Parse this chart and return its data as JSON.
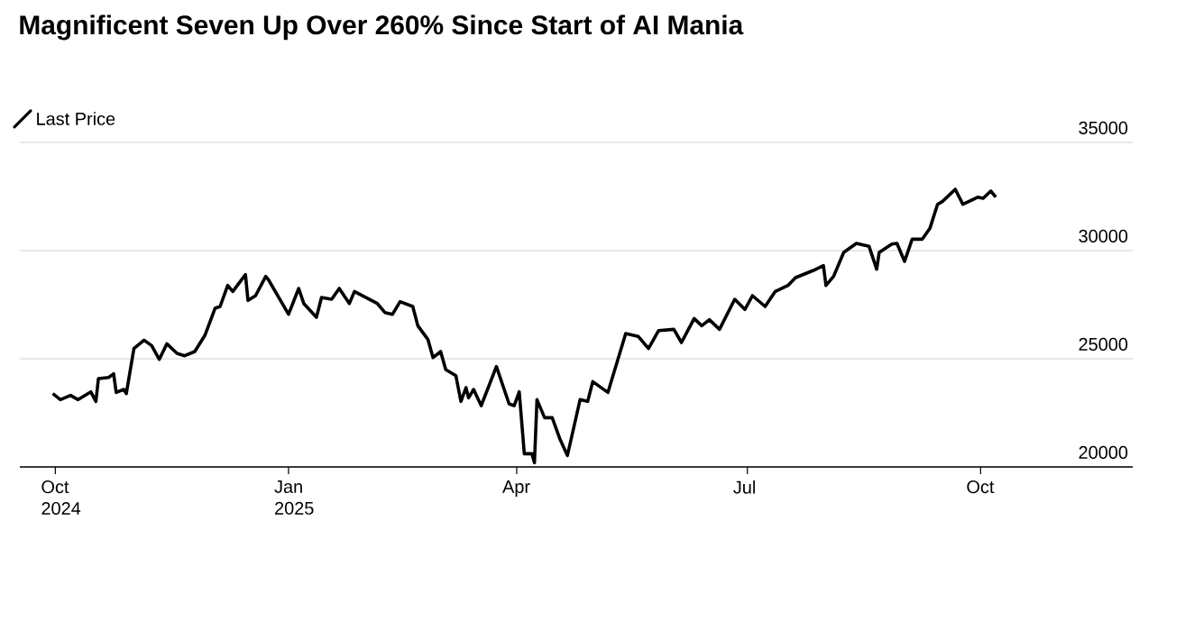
{
  "chart_data": {
    "type": "line",
    "title": "Magnificent Seven Up Over 260% Since Start of AI Mania",
    "x": [
      "2024-09-30",
      "2024-10-03",
      "2024-10-07",
      "2024-10-10",
      "2024-10-15",
      "2024-10-17",
      "2024-10-18",
      "2024-10-22",
      "2024-10-24",
      "2024-10-25",
      "2024-10-28",
      "2024-10-29",
      "2024-11-01",
      "2024-11-05",
      "2024-11-08",
      "2024-11-11",
      "2024-11-14",
      "2024-11-18",
      "2024-11-21",
      "2024-11-25",
      "2024-11-29",
      "2024-12-03",
      "2024-12-05",
      "2024-12-08",
      "2024-12-10",
      "2024-12-15",
      "2024-12-16",
      "2024-12-19",
      "2024-12-23",
      "2024-12-24",
      "2025-01-01",
      "2025-01-05",
      "2025-01-07",
      "2025-01-12",
      "2025-01-14",
      "2025-01-18",
      "2025-01-21",
      "2025-01-25",
      "2025-01-27",
      "2025-02-05",
      "2025-02-08",
      "2025-02-11",
      "2025-02-14",
      "2025-02-19",
      "2025-02-21",
      "2025-02-25",
      "2025-02-27",
      "2025-03-02",
      "2025-03-04",
      "2025-03-08",
      "2025-03-10",
      "2025-03-12",
      "2025-03-13",
      "2025-03-15",
      "2025-03-18",
      "2025-03-24",
      "2025-03-29",
      "2025-03-31",
      "2025-04-02",
      "2025-04-04",
      "2025-04-07",
      "2025-04-08",
      "2025-04-09",
      "2025-04-12",
      "2025-04-15",
      "2025-04-18",
      "2025-04-21",
      "2025-04-26",
      "2025-04-29",
      "2025-05-01",
      "2025-05-07",
      "2025-05-14",
      "2025-05-19",
      "2025-05-23",
      "2025-05-27",
      "2025-06-02",
      "2025-06-05",
      "2025-06-10",
      "2025-06-13",
      "2025-06-16",
      "2025-06-20",
      "2025-06-26",
      "2025-06-30",
      "2025-07-03",
      "2025-07-08",
      "2025-07-12",
      "2025-07-17",
      "2025-07-20",
      "2025-07-27",
      "2025-07-31",
      "2025-08-01",
      "2025-08-04",
      "2025-08-08",
      "2025-08-13",
      "2025-08-18",
      "2025-08-21",
      "2025-08-22",
      "2025-08-27",
      "2025-08-29",
      "2025-09-01",
      "2025-09-04",
      "2025-09-08",
      "2025-09-11",
      "2025-09-14",
      "2025-09-16",
      "2025-09-21",
      "2025-09-24",
      "2025-09-30",
      "2025-10-02",
      "2025-10-05",
      "2025-10-07"
    ],
    "series": [
      {
        "name": "Last Price",
        "color": "#000000",
        "values": [
          23389,
          23111,
          23306,
          23111,
          23472,
          23028,
          24083,
          24139,
          24306,
          23444,
          23583,
          23389,
          25472,
          25861,
          25611,
          24972,
          25694,
          25250,
          25139,
          25333,
          26083,
          27333,
          27417,
          28389,
          28111,
          28889,
          27694,
          27917,
          28806,
          28667,
          27056,
          28250,
          27556,
          26917,
          27833,
          27750,
          28250,
          27556,
          28111,
          27556,
          27139,
          27056,
          27639,
          27417,
          26528,
          25889,
          25056,
          25333,
          24500,
          24222,
          23028,
          23667,
          23194,
          23583,
          22833,
          24639,
          22917,
          22833,
          23472,
          20611,
          20611,
          20194,
          23111,
          22278,
          22278,
          21306,
          20528,
          23111,
          23028,
          23944,
          23444,
          26167,
          26028,
          25472,
          26306,
          26361,
          25750,
          26861,
          26528,
          26806,
          26361,
          27750,
          27278,
          27917,
          27417,
          28111,
          28389,
          28750,
          29083,
          29306,
          28389,
          28806,
          29917,
          30333,
          30194,
          29139,
          29917,
          30306,
          30333,
          29500,
          30528,
          30528,
          31028,
          32139,
          32278,
          32833,
          32139,
          32472,
          32417,
          32750,
          32472
        ]
      }
    ],
    "xlim": [
      "2024-09-17",
      "2025-11-30"
    ],
    "xticks": [
      {
        "value": "2024-10-01",
        "label": "Oct 2024"
      },
      {
        "value": "2025-01-01",
        "label": "Jan 2025"
      },
      {
        "value": "2025-04-01",
        "label": "Apr"
      },
      {
        "value": "2025-07-01",
        "label": "Jul"
      },
      {
        "value": "2025-10-01",
        "label": "Oct"
      }
    ],
    "ylim": [
      20000,
      35000
    ],
    "yticks": [
      20000,
      25000,
      30000,
      35000
    ],
    "grid": "y",
    "legend": "top left",
    "marker": "none",
    "line_style": "solid"
  }
}
